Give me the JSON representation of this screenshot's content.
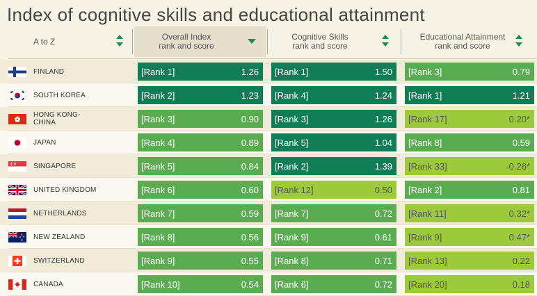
{
  "title": "Index of cognitive skills and educational attainment",
  "colors": {
    "dark": "#0f7e57",
    "mid": "#5aac51",
    "light": "#9cca3b",
    "bg": "#f6f3e4"
  },
  "columns": [
    {
      "label": "A to Z",
      "sort": "both",
      "active": false
    },
    {
      "label": "Overall Index rank and score",
      "line1": "Overall Index",
      "line2": "rank and score",
      "sort": "down",
      "active": true
    },
    {
      "label": "Cognitive Skills rank and score",
      "line1": "Cognitive Skills",
      "line2": "rank and score",
      "sort": "both",
      "active": false
    },
    {
      "label": "Educational Attainment rank and score",
      "line1": "Educational Attainment",
      "line2": "rank and score",
      "sort": "both",
      "active": false
    }
  ],
  "rows": [
    {
      "country": "FINLAND",
      "flag": "finland-flag",
      "overall": {
        "rank": "[Rank 1]",
        "score": "1.26",
        "shade": "dark"
      },
      "cognitive": {
        "rank": "[Rank 1]",
        "score": "1.50",
        "shade": "dark"
      },
      "attainment": {
        "rank": "[Rank 3]",
        "score": "0.79",
        "shade": "mid"
      }
    },
    {
      "country": "SOUTH KOREA",
      "flag": "south-korea-flag",
      "overall": {
        "rank": "[Rank 2]",
        "score": "1.23",
        "shade": "dark"
      },
      "cognitive": {
        "rank": "[Rank 4]",
        "score": "1.24",
        "shade": "dark"
      },
      "attainment": {
        "rank": "[Rank 1]",
        "score": "1.21",
        "shade": "dark"
      }
    },
    {
      "country": "HONG KONG-\nCHINA",
      "flag": "hong-kong-flag",
      "overall": {
        "rank": "[Rank 3]",
        "score": "0.90",
        "shade": "mid"
      },
      "cognitive": {
        "rank": "[Rank 3]",
        "score": "1.26",
        "shade": "dark"
      },
      "attainment": {
        "rank": "[Rank 17]",
        "score": "0.20*",
        "shade": "light"
      }
    },
    {
      "country": "JAPAN",
      "flag": "japan-flag",
      "overall": {
        "rank": "[Rank 4]",
        "score": "0.89",
        "shade": "mid"
      },
      "cognitive": {
        "rank": "[Rank 5]",
        "score": "1.04",
        "shade": "dark"
      },
      "attainment": {
        "rank": "[Rank 8]",
        "score": "0.59",
        "shade": "mid"
      }
    },
    {
      "country": "SINGAPORE",
      "flag": "singapore-flag",
      "overall": {
        "rank": "[Rank 5]",
        "score": "0.84",
        "shade": "mid"
      },
      "cognitive": {
        "rank": "[Rank 2]",
        "score": "1.39",
        "shade": "dark"
      },
      "attainment": {
        "rank": "[Rank 33]",
        "score": "-0.26*",
        "shade": "light"
      }
    },
    {
      "country": "UNITED KINGDOM",
      "flag": "united-kingdom-flag",
      "overall": {
        "rank": "[Rank 6]",
        "score": "0.60",
        "shade": "mid"
      },
      "cognitive": {
        "rank": "[Rank 12]",
        "score": "0.50",
        "shade": "light"
      },
      "attainment": {
        "rank": "[Rank 2]",
        "score": "0.81",
        "shade": "mid"
      }
    },
    {
      "country": "NETHERLANDS",
      "flag": "netherlands-flag",
      "overall": {
        "rank": "[Rank 7]",
        "score": "0.59",
        "shade": "mid"
      },
      "cognitive": {
        "rank": "[Rank 7]",
        "score": "0.72",
        "shade": "mid"
      },
      "attainment": {
        "rank": "[Rank 11]",
        "score": "0.32*",
        "shade": "light"
      }
    },
    {
      "country": "NEW ZEALAND",
      "flag": "new-zealand-flag",
      "overall": {
        "rank": "[Rank 8]",
        "score": "0.56",
        "shade": "mid"
      },
      "cognitive": {
        "rank": "[Rank 9]",
        "score": "0.61",
        "shade": "mid"
      },
      "attainment": {
        "rank": "[Rank 9]",
        "score": "0.47*",
        "shade": "light"
      }
    },
    {
      "country": "SWITZERLAND",
      "flag": "switzerland-flag",
      "overall": {
        "rank": "[Rank 9]",
        "score": "0.55",
        "shade": "mid"
      },
      "cognitive": {
        "rank": "[Rank 8]",
        "score": "0.71",
        "shade": "mid"
      },
      "attainment": {
        "rank": "[Rank 13]",
        "score": "0.22",
        "shade": "light"
      }
    },
    {
      "country": "CANADA",
      "flag": "canada-flag",
      "overall": {
        "rank": "[Rank 10]",
        "score": "0.54",
        "shade": "mid"
      },
      "cognitive": {
        "rank": "[Rank 6]",
        "score": "0.72",
        "shade": "mid"
      },
      "attainment": {
        "rank": "[Rank 20]",
        "score": "0.18",
        "shade": "light"
      }
    }
  ]
}
